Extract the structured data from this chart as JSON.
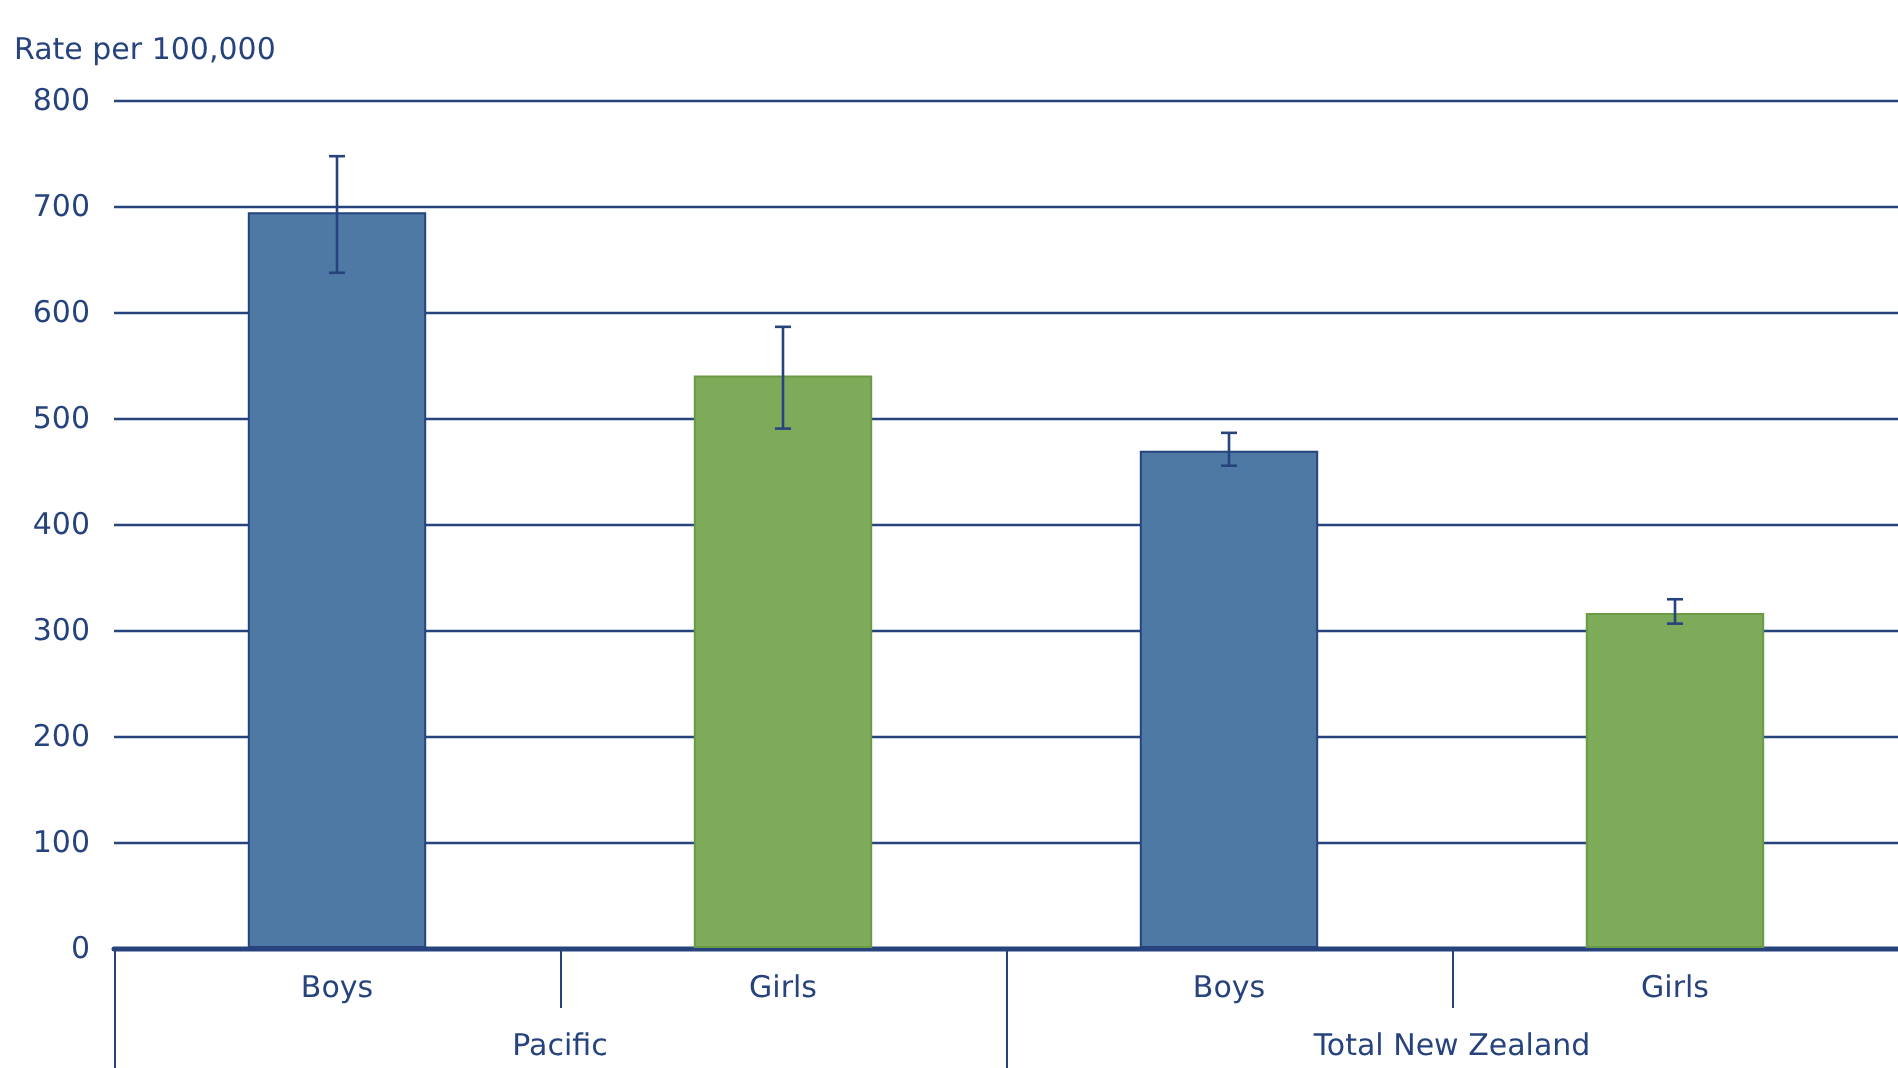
{
  "chart_data": {
    "type": "bar",
    "ylabel": "Rate per 100,000",
    "categories": [
      "Boys",
      "Girls",
      "Boys",
      "Girls"
    ],
    "values": [
      694,
      540,
      469,
      316
    ],
    "colors": [
      "#4e79a5",
      "#7dab59",
      "#4e79a5",
      "#7dab59"
    ],
    "errors": [
      [
        637,
        747
      ],
      [
        490,
        586
      ],
      [
        455,
        486
      ],
      [
        306,
        329
      ]
    ],
    "annotations": [
      "Pacific",
      "Total New Zealand"
    ],
    "ylim": [
      0,
      800
    ],
    "yticks": [
      0,
      100,
      200,
      300,
      400,
      500,
      600,
      700,
      800
    ],
    "grid": "y"
  }
}
